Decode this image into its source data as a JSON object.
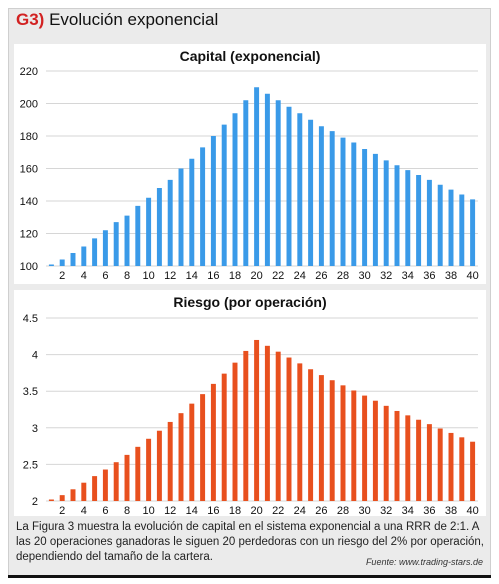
{
  "header": {
    "tag": "G3)",
    "title": "Evolución exponencial"
  },
  "chart_data": [
    {
      "type": "bar",
      "title": "Capital (exponencial)",
      "color": "#3a9ae8",
      "xlabel": "",
      "ylabel": "",
      "ylim": [
        100,
        220
      ],
      "yticks": [
        100,
        120,
        140,
        160,
        180,
        200,
        220
      ],
      "xticks": [
        "2",
        "4",
        "6",
        "8",
        "10",
        "12",
        "14",
        "16",
        "18",
        "20",
        "22",
        "24",
        "26",
        "28",
        "30",
        "32",
        "34",
        "36",
        "38",
        "40"
      ],
      "grid": true,
      "x": [
        1,
        2,
        3,
        4,
        5,
        6,
        7,
        8,
        9,
        10,
        11,
        12,
        13,
        14,
        15,
        16,
        17,
        18,
        19,
        20,
        21,
        22,
        23,
        24,
        25,
        26,
        27,
        28,
        29,
        30,
        31,
        32,
        33,
        34,
        35,
        36,
        37,
        38,
        39,
        40
      ],
      "values": [
        100,
        104,
        108,
        112,
        117,
        122,
        127,
        131,
        137,
        142,
        148,
        153,
        160,
        166,
        173,
        180,
        187,
        194,
        202,
        210,
        206,
        202,
        198,
        194,
        190,
        186,
        183,
        179,
        176,
        172,
        169,
        165,
        162,
        159,
        156,
        153,
        150,
        147,
        144,
        141
      ]
    },
    {
      "type": "bar",
      "title": "Riesgo (por operación)",
      "color": "#e8501e",
      "xlabel": "",
      "ylabel": "",
      "ylim": [
        2,
        4.5
      ],
      "yticks": [
        "2",
        "2.5",
        "3",
        "3.5",
        "4",
        "4.5"
      ],
      "xticks": [
        "2",
        "4",
        "6",
        "8",
        "10",
        "12",
        "14",
        "16",
        "18",
        "20",
        "22",
        "24",
        "26",
        "28",
        "30",
        "32",
        "34",
        "36",
        "38",
        "40"
      ],
      "grid": true,
      "x": [
        1,
        2,
        3,
        4,
        5,
        6,
        7,
        8,
        9,
        10,
        11,
        12,
        13,
        14,
        15,
        16,
        17,
        18,
        19,
        20,
        21,
        22,
        23,
        24,
        25,
        26,
        27,
        28,
        29,
        30,
        31,
        32,
        33,
        34,
        35,
        36,
        37,
        38,
        39,
        40
      ],
      "values": [
        2.0,
        2.08,
        2.16,
        2.25,
        2.34,
        2.43,
        2.53,
        2.63,
        2.74,
        2.85,
        2.96,
        3.08,
        3.2,
        3.33,
        3.46,
        3.6,
        3.74,
        3.89,
        4.05,
        4.2,
        4.12,
        4.04,
        3.96,
        3.88,
        3.8,
        3.72,
        3.65,
        3.58,
        3.51,
        3.44,
        3.37,
        3.3,
        3.23,
        3.17,
        3.11,
        3.05,
        2.99,
        2.93,
        2.87,
        2.81
      ]
    }
  ],
  "caption": "La Figura 3 muestra la evolución de capital en el sistema exponencial a una RRR de 2:1. A las 20 operaciones ganadoras le siguen 20 perdedoras con un riesgo del 2% por operación, dependiendo del tamaño de la cartera.",
  "source": "Fuente: www.trading-stars.de"
}
